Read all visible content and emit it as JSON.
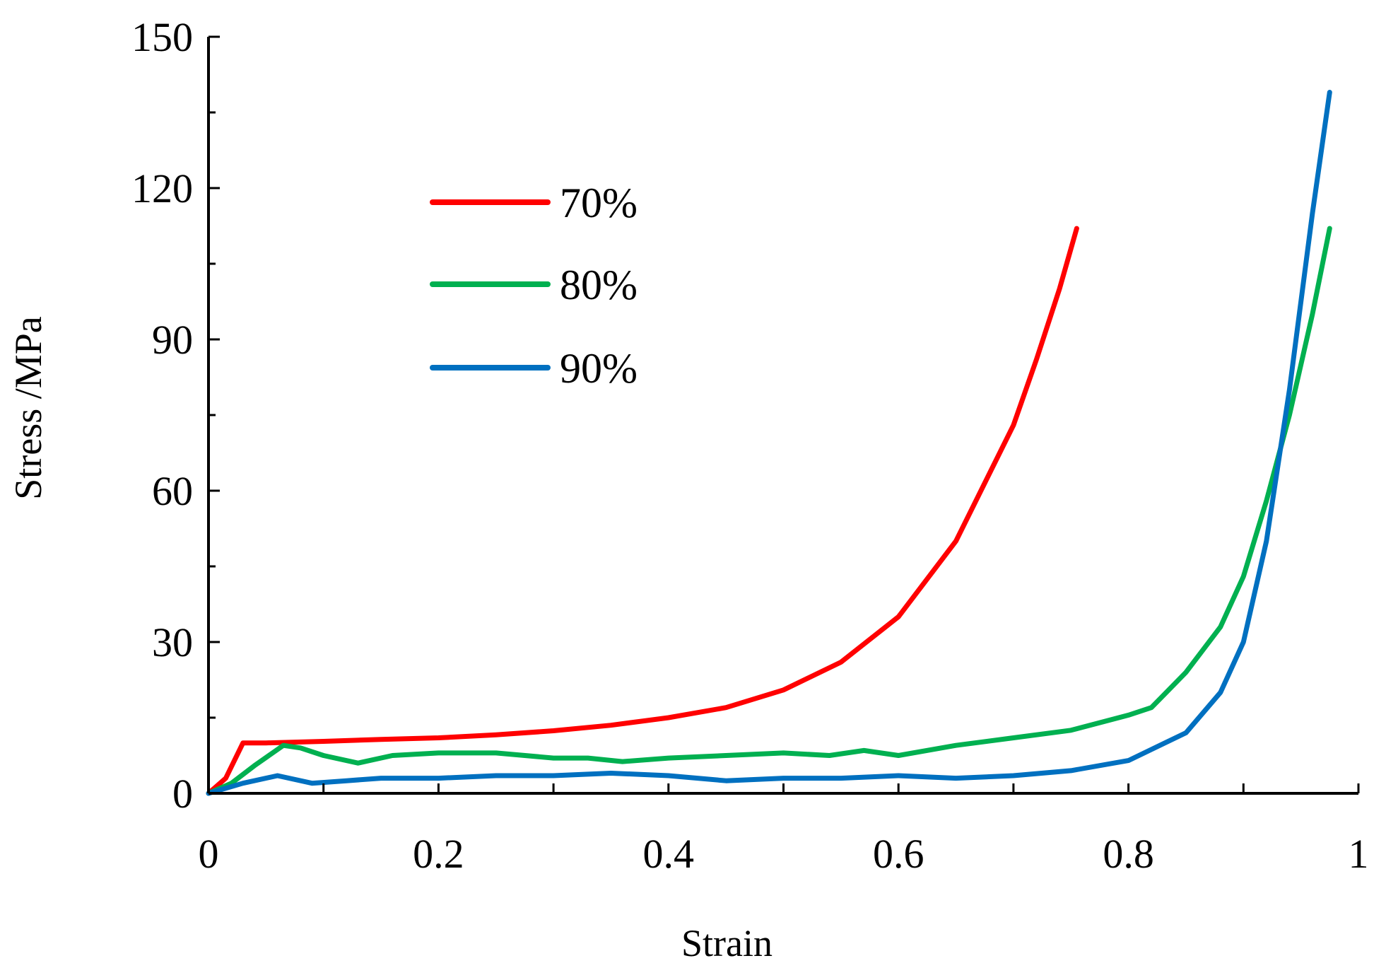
{
  "chart_data": {
    "type": "line",
    "title": "",
    "xlabel": "Strain",
    "ylabel": "Stress /MPa",
    "xlim": [
      0,
      1
    ],
    "ylim": [
      0,
      150
    ],
    "xticks": [
      0,
      0.2,
      0.4,
      0.6,
      0.8,
      1
    ],
    "xtick_labels": [
      "0",
      "0.2",
      "0.4",
      "0.6",
      "0.8",
      "1"
    ],
    "yticks": [
      0,
      30,
      60,
      90,
      120,
      150
    ],
    "ytick_labels": [
      "0",
      "30",
      "60",
      "90",
      "120",
      "150"
    ],
    "grid": false,
    "legend_position": "upper-left inside plot",
    "series": [
      {
        "name": "70%",
        "color": "#ff0000",
        "x": [
          0,
          0.015,
          0.03,
          0.05,
          0.1,
          0.15,
          0.2,
          0.25,
          0.3,
          0.35,
          0.4,
          0.45,
          0.5,
          0.55,
          0.6,
          0.65,
          0.7,
          0.72,
          0.74,
          0.755
        ],
        "y": [
          0,
          3,
          10,
          10,
          10.3,
          10.7,
          11,
          11.6,
          12.4,
          13.5,
          15,
          17,
          20.5,
          26,
          35,
          50,
          73,
          86,
          100,
          112
        ]
      },
      {
        "name": "80%",
        "color": "#00b050",
        "x": [
          0,
          0.02,
          0.04,
          0.065,
          0.08,
          0.1,
          0.13,
          0.16,
          0.2,
          0.25,
          0.3,
          0.33,
          0.36,
          0.4,
          0.45,
          0.5,
          0.54,
          0.57,
          0.6,
          0.65,
          0.7,
          0.75,
          0.8,
          0.82,
          0.85,
          0.88,
          0.9,
          0.92,
          0.94,
          0.96,
          0.975
        ],
        "y": [
          0,
          2,
          5.5,
          9.5,
          9,
          7.5,
          6,
          7.5,
          8,
          8,
          7,
          7,
          6.3,
          7,
          7.5,
          8,
          7.5,
          8.5,
          7.5,
          9.5,
          11,
          12.5,
          15.5,
          17,
          24,
          33,
          43,
          58,
          75,
          95,
          112
        ]
      },
      {
        "name": "90%",
        "color": "#0070c0",
        "x": [
          0,
          0.03,
          0.06,
          0.09,
          0.12,
          0.15,
          0.2,
          0.25,
          0.3,
          0.35,
          0.4,
          0.45,
          0.5,
          0.55,
          0.6,
          0.65,
          0.7,
          0.75,
          0.8,
          0.85,
          0.88,
          0.9,
          0.92,
          0.94,
          0.96,
          0.975
        ],
        "y": [
          0,
          2,
          3.5,
          2,
          2.5,
          3,
          3,
          3.5,
          3.5,
          4,
          3.5,
          2.5,
          3,
          3,
          3.5,
          3,
          3.5,
          4.5,
          6.5,
          12,
          20,
          30,
          50,
          80,
          115,
          139
        ]
      }
    ]
  }
}
